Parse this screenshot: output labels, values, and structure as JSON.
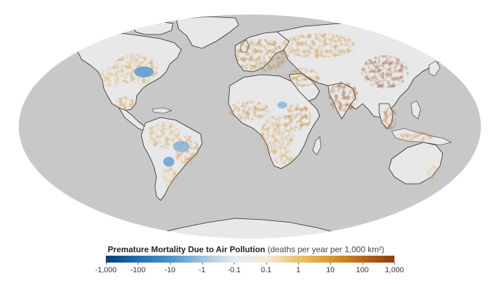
{
  "map": {
    "projection": "Mollweide",
    "ocean_color": "#c8c8c8",
    "land_base_color": "#e8e8e8",
    "coastline_color": "#222222"
  },
  "legend": {
    "title": "Premature Mortality Due to Air Pollution",
    "units": "(deaths per year per 1,000 km²)",
    "ticks": [
      "-1,000",
      "-100",
      "-10",
      "-1",
      "-0.1",
      "0.1",
      "1",
      "10",
      "100",
      "1,000"
    ],
    "color_stops": [
      "#0b3d7a",
      "#1f6fb0",
      "#4b93c9",
      "#9ec3e0",
      "#e6ebef",
      "#f2ead8",
      "#e9c36a",
      "#d79a2a",
      "#b8661a",
      "#8a3f12"
    ]
  }
}
